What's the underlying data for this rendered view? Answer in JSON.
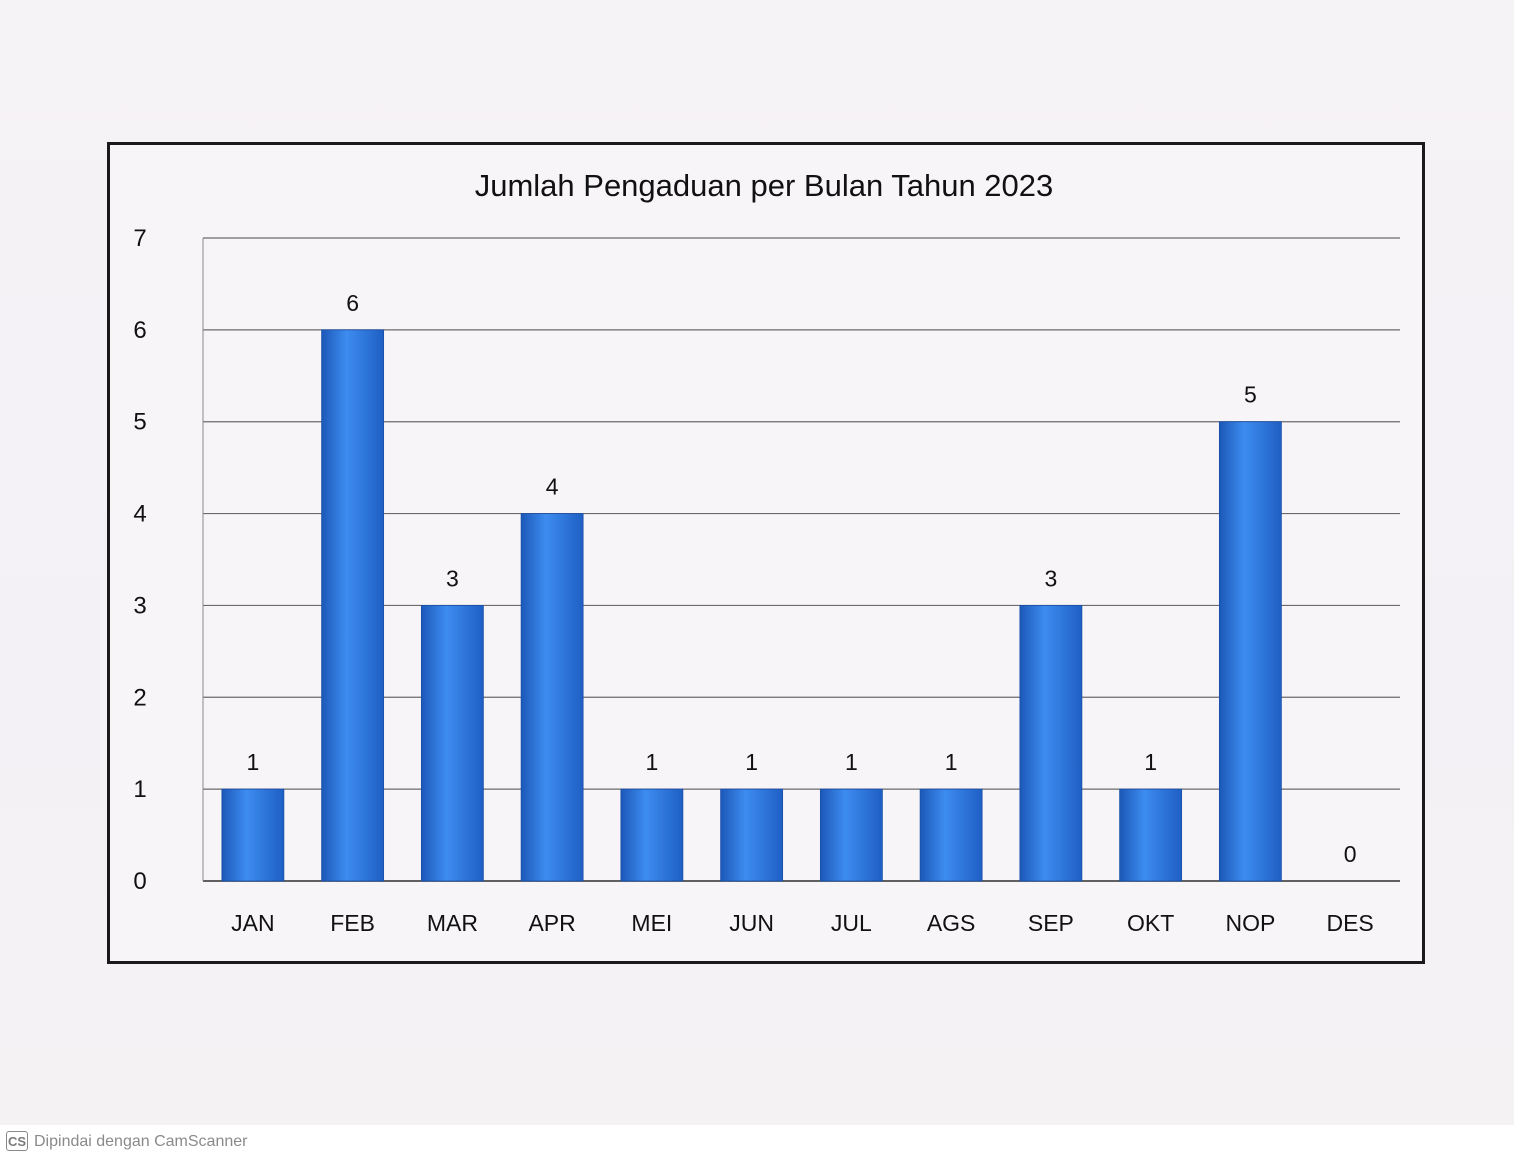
{
  "chart_data": {
    "type": "bar",
    "title": "Jumlah Pengaduan per Bulan Tahun 2023",
    "categories": [
      "JAN",
      "FEB",
      "MAR",
      "APR",
      "MEI",
      "JUN",
      "JUL",
      "AGS",
      "SEP",
      "OKT",
      "NOP",
      "DES"
    ],
    "values": [
      1,
      6,
      3,
      4,
      1,
      1,
      1,
      1,
      3,
      1,
      5,
      0
    ],
    "ylim": [
      0,
      7
    ],
    "yticks": [
      0,
      1,
      2,
      3,
      4,
      5,
      6,
      7
    ],
    "grid": true,
    "data_labels": true,
    "bar_color": "#2a6fd6",
    "bar_color_light": "#3d8cf0",
    "bar_color_dark": "#1c58b8"
  },
  "footer": {
    "badge": "CS",
    "text": "Dipindai dengan CamScanner"
  }
}
